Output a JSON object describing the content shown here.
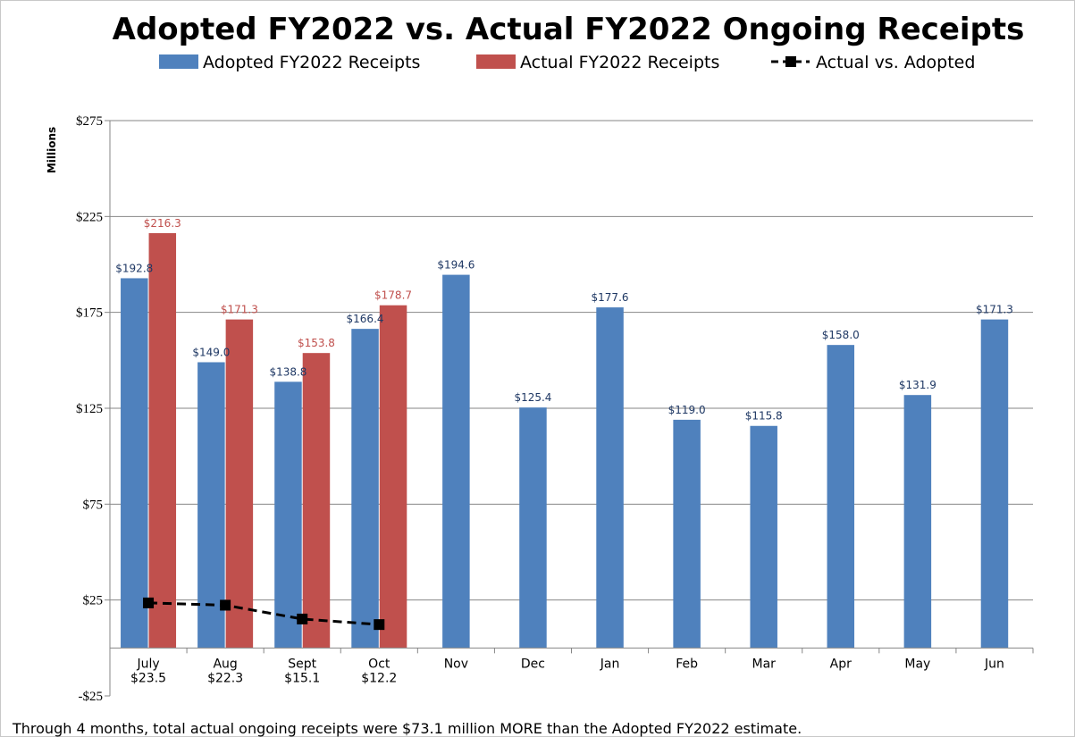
{
  "chart_data": {
    "type": "bar",
    "title": "Adopted FY2022 vs. Actual FY2022 Ongoing Receipts",
    "ylabel": "Millions",
    "xlabel": "",
    "ylim": [
      -25,
      275
    ],
    "yticks": [
      "-$25",
      "$25",
      "$75",
      "$125",
      "$175",
      "$225",
      "$275"
    ],
    "ytick_values": [
      -25,
      25,
      75,
      125,
      175,
      225,
      275
    ],
    "grid": true,
    "legend_position": "top",
    "categories": [
      "July",
      "Aug",
      "Sept",
      "Oct",
      "Nov",
      "Dec",
      "Jan",
      "Feb",
      "Mar",
      "Apr",
      "May",
      "Jun"
    ],
    "category_sublabels": [
      "$23.5",
      "$22.3",
      "$15.1",
      "$12.2",
      "",
      "",
      "",
      "",
      "",
      "",
      "",
      ""
    ],
    "series": [
      {
        "name": "Adopted FY2022 Receipts",
        "kind": "bar",
        "color": "#4f81bd",
        "values": [
          192.8,
          149.0,
          138.8,
          166.4,
          194.6,
          125.4,
          177.6,
          119.0,
          115.8,
          158.0,
          131.9,
          171.3
        ],
        "labels": [
          "$192.8",
          "$149.0",
          "$138.8",
          "$166.4",
          "$194.6",
          "$125.4",
          "$177.6",
          "$119.0",
          "$115.8",
          "$158.0",
          "$131.9",
          "$171.3"
        ]
      },
      {
        "name": "Actual FY2022 Receipts",
        "kind": "bar",
        "color": "#c0504d",
        "values": [
          216.3,
          171.3,
          153.8,
          178.7,
          null,
          null,
          null,
          null,
          null,
          null,
          null,
          null
        ],
        "labels": [
          "$216.3",
          "$171.3",
          "$153.8",
          "$178.7",
          "",
          "",
          "",
          "",
          "",
          "",
          "",
          ""
        ]
      },
      {
        "name": "Actual vs. Adopted",
        "kind": "line",
        "color": "#000000",
        "values": [
          23.5,
          22.3,
          15.1,
          12.2,
          null,
          null,
          null,
          null,
          null,
          null,
          null,
          null
        ]
      }
    ],
    "footnote": "Through 4 months, total actual ongoing receipts were $73.1 million MORE than the Adopted FY2022 estimate."
  }
}
